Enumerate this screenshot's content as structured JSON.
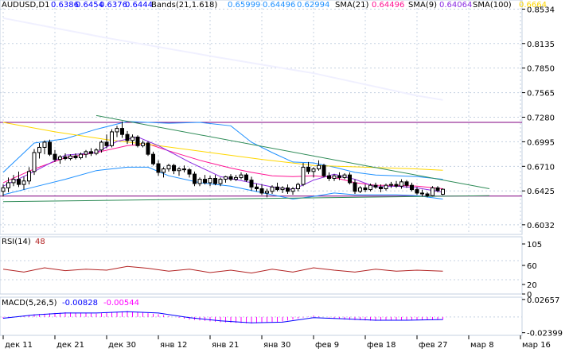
{
  "colors": {
    "background": "#ffffff",
    "grid": "#c4d0e0",
    "axis_text": "#000000",
    "candle_up_body": "#ffffff",
    "candle_down_body": "#000000",
    "band_line": "#1e90ff",
    "sma21": "#ff1493",
    "sma9": "#8a2be2",
    "sma100": "#ffd700",
    "trend_line": "#2e8b57",
    "resistance": "#800080",
    "sma200": "#f0f0ff",
    "rsi_line": "#b22222",
    "macd_line": "#0000ff",
    "macd_signal": "#ff00ff"
  },
  "chart_data": [
    {
      "type": "candlestick",
      "title": "AUDUSD,D1",
      "header": {
        "symbol": "AUDUSD,D1",
        "ohlc": [
          "0.6386",
          "0.6454",
          "0.6376",
          "0.6444"
        ],
        "bands_label": "Bands(21,1.618)",
        "bands_values": [
          "0.65999",
          "0.64496",
          "0.62994"
        ],
        "sma21_label": "SMA(21)",
        "sma21_value": "0.64496",
        "sma9_label": "SMA(9)",
        "sma9_value": "0.64064",
        "sma100_label": "SMA(100)",
        "sma100_value": "0.6664"
      },
      "ylim": [
        0.592,
        0.864
      ],
      "y_ticks": [
        "0.8534",
        "0.8135",
        "0.7850",
        "0.7565",
        "0.7280",
        "0.6995",
        "0.6710",
        "0.6425",
        "0.6032"
      ],
      "y_tick_values": [
        0.8534,
        0.8135,
        0.785,
        0.7565,
        0.728,
        0.6995,
        0.671,
        0.6425,
        0.6032
      ],
      "x_labels": [
        "дек 11",
        "дек 21",
        "дек 30",
        "янв 12",
        "янв 21",
        "янв 30",
        "фев 9",
        "фев 18",
        "фев 27",
        "мар 8",
        "мар 16"
      ],
      "x_label_bars": [
        0,
        10,
        20,
        30,
        40,
        50,
        60,
        70,
        80,
        90,
        100
      ],
      "horizontal_levels": [
        0.722,
        0.6365
      ],
      "candles": [
        [
          0.642,
          0.65,
          0.636,
          0.646
        ],
        [
          0.646,
          0.658,
          0.641,
          0.652
        ],
        [
          0.652,
          0.661,
          0.648,
          0.656
        ],
        [
          0.656,
          0.665,
          0.647,
          0.65
        ],
        [
          0.65,
          0.659,
          0.644,
          0.654
        ],
        [
          0.654,
          0.67,
          0.65,
          0.665
        ],
        [
          0.665,
          0.691,
          0.661,
          0.687
        ],
        [
          0.687,
          0.698,
          0.68,
          0.693
        ],
        [
          0.693,
          0.701,
          0.685,
          0.699
        ],
        [
          0.699,
          0.702,
          0.683,
          0.685
        ],
        [
          0.685,
          0.69,
          0.676,
          0.679
        ],
        [
          0.679,
          0.684,
          0.674,
          0.682
        ],
        [
          0.682,
          0.686,
          0.678,
          0.68
        ],
        [
          0.68,
          0.685,
          0.678,
          0.683
        ],
        [
          0.683,
          0.686,
          0.679,
          0.681
        ],
        [
          0.681,
          0.687,
          0.679,
          0.685
        ],
        [
          0.685,
          0.69,
          0.681,
          0.688
        ],
        [
          0.688,
          0.692,
          0.683,
          0.686
        ],
        [
          0.686,
          0.692,
          0.684,
          0.69
        ],
        [
          0.69,
          0.701,
          0.687,
          0.699
        ],
        [
          0.699,
          0.708,
          0.692,
          0.695
        ],
        [
          0.695,
          0.714,
          0.693,
          0.711
        ],
        [
          0.711,
          0.718,
          0.705,
          0.715
        ],
        [
          0.715,
          0.723,
          0.704,
          0.708
        ],
        [
          0.708,
          0.712,
          0.697,
          0.701
        ],
        [
          0.701,
          0.708,
          0.696,
          0.705
        ],
        [
          0.705,
          0.707,
          0.693,
          0.695
        ],
        [
          0.695,
          0.701,
          0.693,
          0.698
        ],
        [
          0.698,
          0.7,
          0.683,
          0.685
        ],
        [
          0.685,
          0.688,
          0.672,
          0.674
        ],
        [
          0.674,
          0.678,
          0.66,
          0.664
        ],
        [
          0.664,
          0.67,
          0.658,
          0.668
        ],
        [
          0.668,
          0.674,
          0.665,
          0.672
        ],
        [
          0.672,
          0.674,
          0.662,
          0.666
        ],
        [
          0.666,
          0.67,
          0.66,
          0.668
        ],
        [
          0.668,
          0.672,
          0.664,
          0.667
        ],
        [
          0.667,
          0.669,
          0.658,
          0.662
        ],
        [
          0.662,
          0.665,
          0.648,
          0.651
        ],
        [
          0.651,
          0.658,
          0.648,
          0.656
        ],
        [
          0.656,
          0.661,
          0.65,
          0.652
        ],
        [
          0.652,
          0.66,
          0.648,
          0.657
        ],
        [
          0.657,
          0.661,
          0.649,
          0.651
        ],
        [
          0.651,
          0.658,
          0.648,
          0.656
        ],
        [
          0.656,
          0.66,
          0.652,
          0.659
        ],
        [
          0.659,
          0.662,
          0.654,
          0.656
        ],
        [
          0.656,
          0.661,
          0.654,
          0.658
        ],
        [
          0.658,
          0.664,
          0.656,
          0.661
        ],
        [
          0.661,
          0.663,
          0.653,
          0.655
        ],
        [
          0.655,
          0.659,
          0.643,
          0.647
        ],
        [
          0.647,
          0.651,
          0.642,
          0.645
        ],
        [
          0.645,
          0.65,
          0.638,
          0.64
        ],
        [
          0.64,
          0.645,
          0.635,
          0.642
        ],
        [
          0.642,
          0.649,
          0.639,
          0.647
        ],
        [
          0.647,
          0.652,
          0.642,
          0.644
        ],
        [
          0.644,
          0.648,
          0.64,
          0.646
        ],
        [
          0.646,
          0.65,
          0.639,
          0.642
        ],
        [
          0.642,
          0.647,
          0.638,
          0.645
        ],
        [
          0.645,
          0.652,
          0.642,
          0.65
        ],
        [
          0.65,
          0.675,
          0.648,
          0.67
        ],
        [
          0.67,
          0.676,
          0.662,
          0.665
        ],
        [
          0.665,
          0.67,
          0.658,
          0.668
        ],
        [
          0.668,
          0.678,
          0.666,
          0.672
        ],
        [
          0.672,
          0.674,
          0.658,
          0.66
        ],
        [
          0.66,
          0.664,
          0.654,
          0.657
        ],
        [
          0.657,
          0.662,
          0.654,
          0.66
        ],
        [
          0.66,
          0.664,
          0.655,
          0.658
        ],
        [
          0.658,
          0.663,
          0.656,
          0.661
        ],
        [
          0.661,
          0.664,
          0.65,
          0.652
        ],
        [
          0.652,
          0.656,
          0.639,
          0.642
        ],
        [
          0.642,
          0.648,
          0.64,
          0.646
        ],
        [
          0.646,
          0.65,
          0.641,
          0.644
        ],
        [
          0.644,
          0.651,
          0.642,
          0.649
        ],
        [
          0.649,
          0.652,
          0.645,
          0.647
        ],
        [
          0.647,
          0.65,
          0.641,
          0.645
        ],
        [
          0.645,
          0.651,
          0.643,
          0.649
        ],
        [
          0.649,
          0.653,
          0.646,
          0.65
        ],
        [
          0.65,
          0.654,
          0.646,
          0.648
        ],
        [
          0.648,
          0.656,
          0.645,
          0.653
        ],
        [
          0.653,
          0.655,
          0.646,
          0.649
        ],
        [
          0.649,
          0.652,
          0.642,
          0.644
        ],
        [
          0.644,
          0.647,
          0.638,
          0.64
        ],
        [
          0.64,
          0.644,
          0.636,
          0.639
        ],
        [
          0.639,
          0.641,
          0.635,
          0.637
        ],
        [
          0.637,
          0.648,
          0.636,
          0.646
        ],
        [
          0.646,
          0.648,
          0.641,
          0.643
        ],
        [
          0.6386,
          0.6454,
          0.6376,
          0.6444
        ]
      ],
      "bollinger": {
        "x": [
          0,
          6,
          12,
          18,
          24,
          28,
          32,
          38,
          44,
          48,
          52,
          56,
          60,
          64,
          68,
          72,
          76,
          80,
          85
        ],
        "upper": [
          0.664,
          0.698,
          0.703,
          0.714,
          0.723,
          0.722,
          0.721,
          0.722,
          0.718,
          0.699,
          0.687,
          0.676,
          0.675,
          0.67,
          0.664,
          0.661,
          0.66,
          0.659,
          0.656
        ],
        "middle": [
          0.652,
          0.668,
          0.681,
          0.687,
          0.695,
          0.697,
          0.689,
          0.678,
          0.669,
          0.664,
          0.66,
          0.659,
          0.66,
          0.658,
          0.652,
          0.649,
          0.649,
          0.648,
          0.645
        ],
        "lower": [
          0.638,
          0.647,
          0.656,
          0.666,
          0.67,
          0.67,
          0.66,
          0.652,
          0.648,
          0.643,
          0.638,
          0.633,
          0.636,
          0.64,
          0.638,
          0.638,
          0.638,
          0.637,
          0.633
        ]
      },
      "sma9": {
        "x": [
          0,
          6,
          12,
          18,
          22,
          26,
          30,
          36,
          42,
          48,
          52,
          56,
          60,
          64,
          68,
          72,
          76,
          80,
          85
        ],
        "values": [
          0.648,
          0.665,
          0.684,
          0.687,
          0.7,
          0.705,
          0.695,
          0.676,
          0.659,
          0.652,
          0.647,
          0.644,
          0.655,
          0.662,
          0.656,
          0.647,
          0.648,
          0.646,
          0.641
        ]
      },
      "sma100": {
        "x": [
          0,
          10,
          20,
          30,
          40,
          50,
          60,
          70,
          80,
          85
        ],
        "values": [
          0.722,
          0.711,
          0.702,
          0.695,
          0.687,
          0.679,
          0.672,
          0.67,
          0.668,
          0.6664
        ]
      },
      "sma200": {
        "x": [
          0,
          20,
          40,
          60,
          80,
          85
        ],
        "values": [
          0.843,
          0.82,
          0.799,
          0.779,
          0.753,
          0.748
        ]
      },
      "trendlines": [
        {
          "x1": 18,
          "y1": 0.73,
          "x2": 94,
          "y2": 0.645
        },
        {
          "x1": 0,
          "y1": 0.63,
          "x2": 94,
          "y2": 0.637
        }
      ]
    },
    {
      "type": "line",
      "title": "RSI(14)",
      "label": "RSI(14)",
      "value": "48",
      "ylim": [
        0,
        120
      ],
      "y_ticks": [
        "105",
        "60",
        "20",
        "0"
      ],
      "y_tick_values": [
        105,
        60,
        20,
        0
      ],
      "levels": [
        30,
        70
      ],
      "x": [
        0,
        4,
        8,
        12,
        16,
        20,
        24,
        28,
        32,
        36,
        40,
        44,
        48,
        52,
        56,
        60,
        64,
        68,
        72,
        76,
        80,
        85
      ],
      "values": [
        52,
        46,
        55,
        49,
        52,
        50,
        58,
        54,
        48,
        52,
        45,
        50,
        44,
        52,
        46,
        55,
        50,
        46,
        52,
        48,
        50,
        48
      ]
    },
    {
      "type": "histogram",
      "title": "MACD(5,26,5)",
      "label": "MACD(5,26,5)",
      "main_value": "-0.00828",
      "signal_value": "-0.00544",
      "ylim": [
        -0.028,
        0.03
      ],
      "y_ticks": [
        "0.02657",
        "-0.02399"
      ],
      "y_tick_values": [
        0.02657,
        -0.02399
      ],
      "x": [
        0,
        6,
        12,
        18,
        24,
        30,
        36,
        42,
        48,
        54,
        60,
        66,
        72,
        78,
        85
      ],
      "histogram": [
        -0.002,
        0.004,
        0.007,
        0.005,
        0.009,
        0.004,
        -0.004,
        -0.008,
        -0.01,
        -0.007,
        0.002,
        -0.004,
        -0.006,
        -0.005,
        -0.004
      ],
      "signal": [
        -0.002,
        0.003,
        0.006,
        0.006,
        0.008,
        0.006,
        -0.001,
        -0.006,
        -0.009,
        -0.008,
        -0.001,
        -0.003,
        -0.005,
        -0.005,
        -0.004
      ]
    }
  ]
}
